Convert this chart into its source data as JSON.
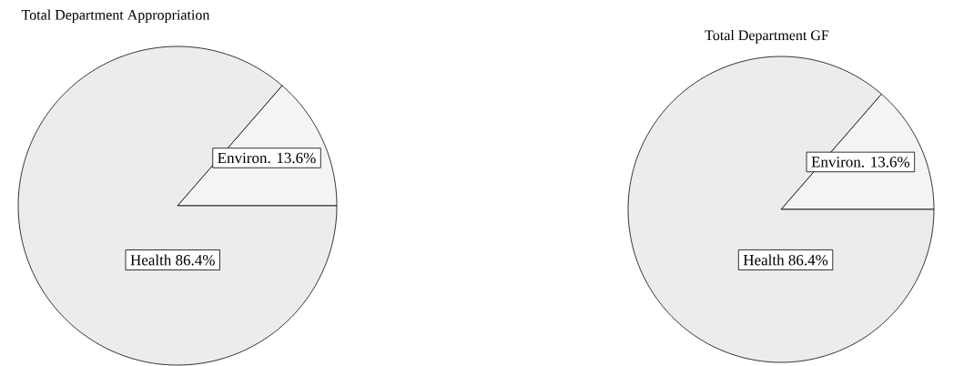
{
  "chart_data": [
    {
      "type": "pie",
      "title": "Total Department Appropriation",
      "categories": [
        "Environ.",
        "Health"
      ],
      "values": [
        13.6,
        86.4
      ],
      "value_labels": [
        "13.6%",
        "86.4%"
      ],
      "colors": [
        "#f4f4f4",
        "#ececec"
      ]
    },
    {
      "type": "pie",
      "title": "Total Department GF",
      "categories": [
        "Environ.",
        "Health"
      ],
      "values": [
        13.6,
        86.4
      ],
      "value_labels": [
        "13.6%",
        "86.4%"
      ],
      "colors": [
        "#f4f4f4",
        "#ececec"
      ]
    }
  ]
}
